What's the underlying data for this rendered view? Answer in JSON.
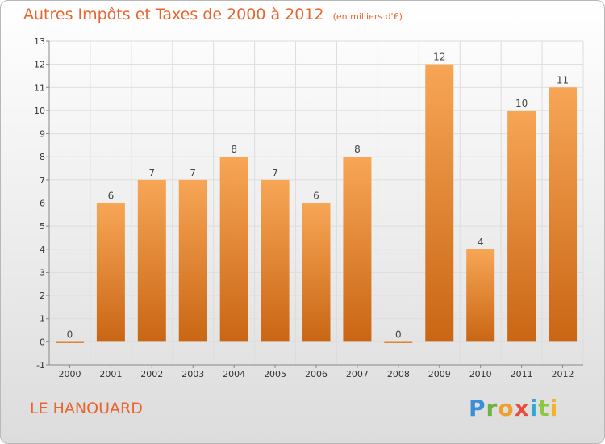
{
  "title": "Autres Impôts et Taxes de 2000 à 2012",
  "unit": "(en milliers d'€)",
  "location": "LE HANOUARD",
  "logo_text": "Proxiti",
  "colors": {
    "bar_light": "#f7a656",
    "bar_dark": "#c96614",
    "title": "#e8662e",
    "grid": "#dddddd"
  },
  "chart_data": {
    "type": "bar",
    "title": "Autres Impôts et Taxes de 2000 à 2012",
    "xlabel": "",
    "ylabel": "",
    "categories": [
      "2000",
      "2001",
      "2002",
      "2003",
      "2004",
      "2005",
      "2006",
      "2007",
      "2008",
      "2009",
      "2010",
      "2011",
      "2012"
    ],
    "values": [
      0,
      6,
      7,
      7,
      8,
      7,
      6,
      8,
      0,
      12,
      4,
      10,
      11
    ],
    "ylim": [
      -1,
      13
    ],
    "yticks": [
      "-1",
      "0",
      "1",
      "2",
      "3",
      "4",
      "5",
      "6",
      "7",
      "8",
      "9",
      "10",
      "11",
      "12",
      "13"
    ],
    "grid": true
  }
}
